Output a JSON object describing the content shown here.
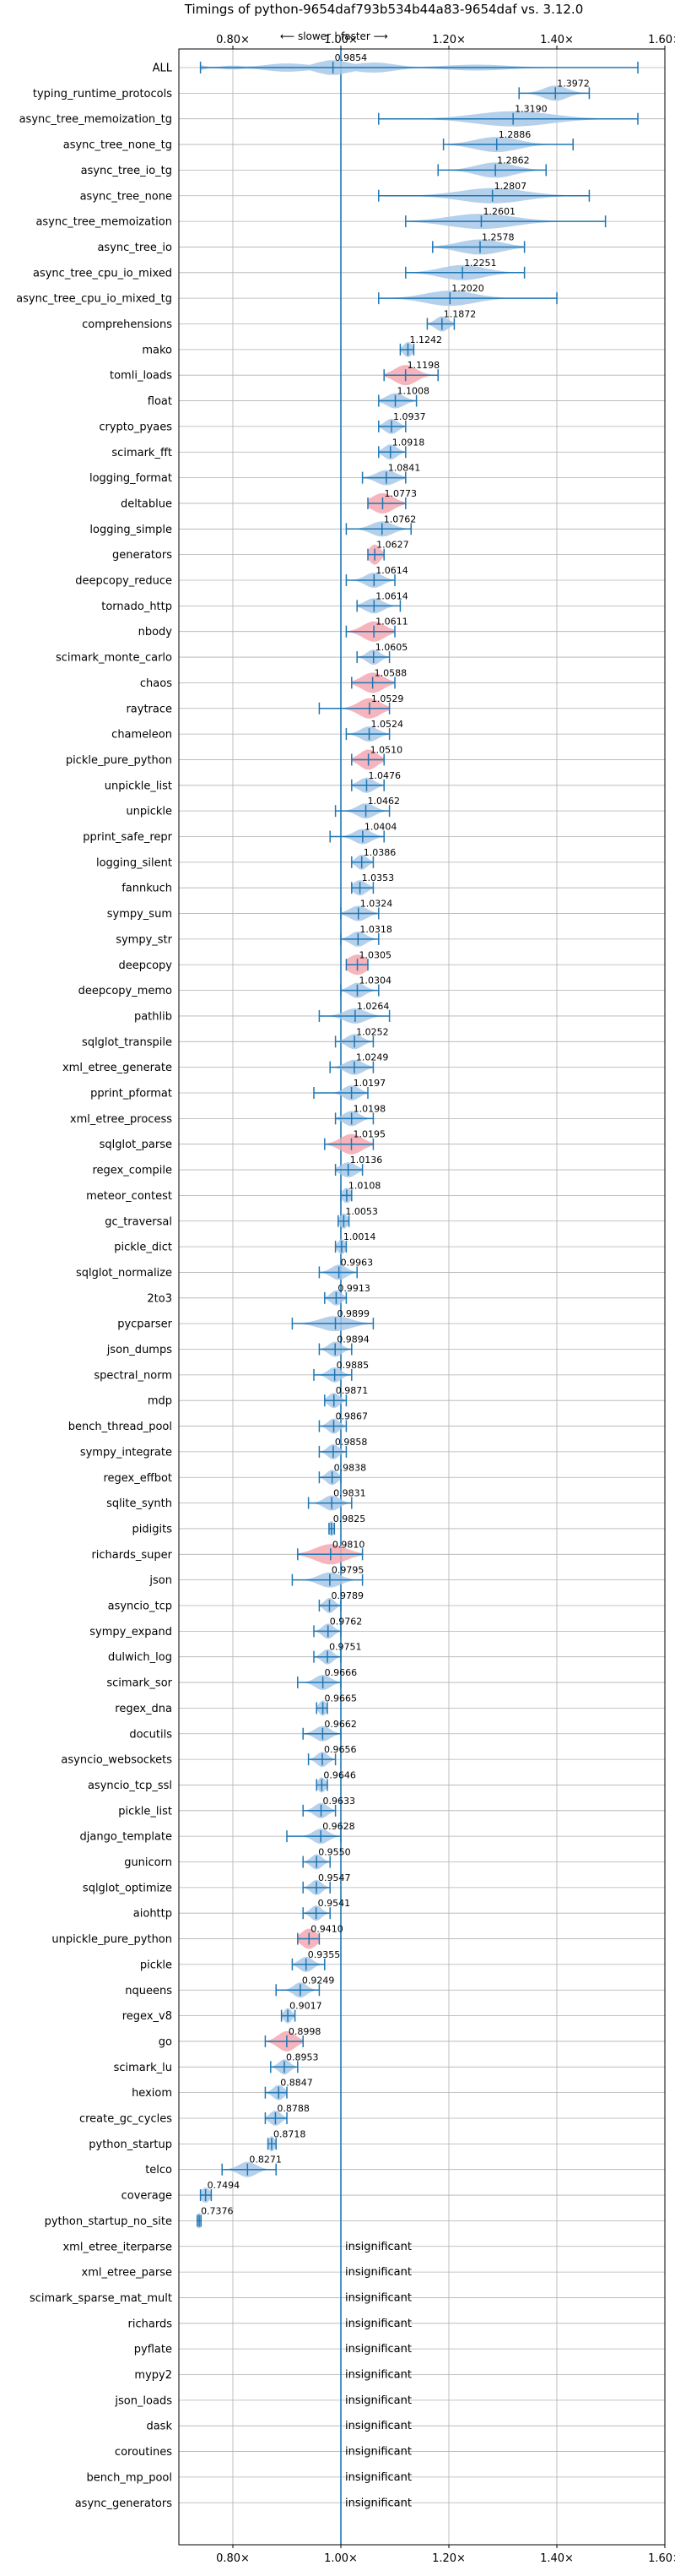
{
  "chart_data": {
    "type": "violin",
    "title": "Timings of python-9654daf793b534b44a83-9654daf vs. 3.12.0",
    "direction_labels": {
      "slower": "⟵ slower",
      "sep": "|",
      "faster": "faster ⟶"
    },
    "xlim": [
      0.7,
      1.6
    ],
    "x_ticks": [
      0.8,
      1.0,
      1.2,
      1.4,
      1.6
    ],
    "x_tick_labels": [
      "0.80×",
      "1.00×",
      "1.20×",
      "1.40×",
      "1.60×"
    ],
    "grid": true,
    "colors": {
      "normal": "#a8c8e8",
      "significant": "#f4a7b0",
      "stroke": "#1f77b4",
      "grid": "#b0b0b0"
    },
    "insignificant_label": "insignificant",
    "benchmarks": [
      {
        "name": "ALL",
        "value": 0.9854,
        "label": "0.9854",
        "min": 0.74,
        "max": 1.55,
        "spread": 0.012,
        "sig": false,
        "shape": "all"
      },
      {
        "name": "typing_runtime_protocols",
        "value": 1.3972,
        "label": "1.3972",
        "min": 1.33,
        "max": 1.46,
        "spread": 0.022,
        "sig": false
      },
      {
        "name": "async_tree_memoization_tg",
        "value": 1.319,
        "label": "1.3190",
        "min": 1.07,
        "max": 1.55,
        "spread": 0.07,
        "sig": false
      },
      {
        "name": "async_tree_none_tg",
        "value": 1.2886,
        "label": "1.2886",
        "min": 1.19,
        "max": 1.43,
        "spread": 0.04,
        "sig": false
      },
      {
        "name": "async_tree_io_tg",
        "value": 1.2862,
        "label": "1.2862",
        "min": 1.18,
        "max": 1.38,
        "spread": 0.035,
        "sig": false
      },
      {
        "name": "async_tree_none",
        "value": 1.2807,
        "label": "1.2807",
        "min": 1.07,
        "max": 1.46,
        "spread": 0.06,
        "sig": false
      },
      {
        "name": "async_tree_memoization",
        "value": 1.2601,
        "label": "1.2601",
        "min": 1.12,
        "max": 1.49,
        "spread": 0.06,
        "sig": false
      },
      {
        "name": "async_tree_io",
        "value": 1.2578,
        "label": "1.2578",
        "min": 1.17,
        "max": 1.34,
        "spread": 0.04,
        "sig": false
      },
      {
        "name": "async_tree_cpu_io_mixed",
        "value": 1.2251,
        "label": "1.2251",
        "min": 1.12,
        "max": 1.34,
        "spread": 0.04,
        "sig": false
      },
      {
        "name": "async_tree_cpu_io_mixed_tg",
        "value": 1.202,
        "label": "1.2020",
        "min": 1.07,
        "max": 1.4,
        "spread": 0.045,
        "sig": false
      },
      {
        "name": "comprehensions",
        "value": 1.1872,
        "label": "1.1872",
        "min": 1.16,
        "max": 1.21,
        "spread": 0.012,
        "sig": false
      },
      {
        "name": "mako",
        "value": 1.1242,
        "label": "1.1242",
        "min": 1.11,
        "max": 1.135,
        "spread": 0.008,
        "sig": false
      },
      {
        "name": "tomli_loads",
        "value": 1.1198,
        "label": "1.1198",
        "min": 1.08,
        "max": 1.18,
        "spread": 0.02,
        "sig": true
      },
      {
        "name": "float",
        "value": 1.1008,
        "label": "1.1008",
        "min": 1.07,
        "max": 1.14,
        "spread": 0.016,
        "sig": false
      },
      {
        "name": "crypto_pyaes",
        "value": 1.0937,
        "label": "1.0937",
        "min": 1.07,
        "max": 1.12,
        "spread": 0.012,
        "sig": false
      },
      {
        "name": "scimark_fft",
        "value": 1.0918,
        "label": "1.0918",
        "min": 1.07,
        "max": 1.12,
        "spread": 0.012,
        "sig": false
      },
      {
        "name": "logging_format",
        "value": 1.0841,
        "label": "1.0841",
        "min": 1.04,
        "max": 1.12,
        "spread": 0.018,
        "sig": false
      },
      {
        "name": "deltablue",
        "value": 1.0773,
        "label": "1.0773",
        "min": 1.05,
        "max": 1.12,
        "spread": 0.02,
        "sig": true
      },
      {
        "name": "logging_simple",
        "value": 1.0762,
        "label": "1.0762",
        "min": 1.01,
        "max": 1.13,
        "spread": 0.02,
        "sig": false
      },
      {
        "name": "generators",
        "value": 1.0627,
        "label": "1.0627",
        "min": 1.05,
        "max": 1.08,
        "spread": 0.01,
        "sig": true
      },
      {
        "name": "deepcopy_reduce",
        "value": 1.0614,
        "label": "1.0614",
        "min": 1.01,
        "max": 1.1,
        "spread": 0.016,
        "sig": false
      },
      {
        "name": "tornado_http",
        "value": 1.0614,
        "label": "1.0614",
        "min": 1.03,
        "max": 1.11,
        "spread": 0.016,
        "sig": false
      },
      {
        "name": "nbody",
        "value": 1.0611,
        "label": "1.0611",
        "min": 1.01,
        "max": 1.1,
        "spread": 0.02,
        "sig": true
      },
      {
        "name": "scimark_monte_carlo",
        "value": 1.0605,
        "label": "1.0605",
        "min": 1.03,
        "max": 1.09,
        "spread": 0.012,
        "sig": false
      },
      {
        "name": "chaos",
        "value": 1.0588,
        "label": "1.0588",
        "min": 1.02,
        "max": 1.1,
        "spread": 0.02,
        "sig": true
      },
      {
        "name": "raytrace",
        "value": 1.0529,
        "label": "1.0529",
        "min": 0.96,
        "max": 1.09,
        "spread": 0.02,
        "sig": true
      },
      {
        "name": "chameleon",
        "value": 1.0524,
        "label": "1.0524",
        "min": 1.01,
        "max": 1.09,
        "spread": 0.016,
        "sig": false
      },
      {
        "name": "pickle_pure_python",
        "value": 1.051,
        "label": "1.0510",
        "min": 1.02,
        "max": 1.08,
        "spread": 0.016,
        "sig": true
      },
      {
        "name": "unpickle_list",
        "value": 1.0476,
        "label": "1.0476",
        "min": 1.02,
        "max": 1.08,
        "spread": 0.014,
        "sig": false
      },
      {
        "name": "unpickle",
        "value": 1.0462,
        "label": "1.0462",
        "min": 0.99,
        "max": 1.09,
        "spread": 0.016,
        "sig": false
      },
      {
        "name": "pprint_safe_repr",
        "value": 1.0404,
        "label": "1.0404",
        "min": 0.98,
        "max": 1.08,
        "spread": 0.016,
        "sig": false
      },
      {
        "name": "logging_silent",
        "value": 1.0386,
        "label": "1.0386",
        "min": 1.02,
        "max": 1.06,
        "spread": 0.01,
        "sig": false
      },
      {
        "name": "fannkuch",
        "value": 1.0353,
        "label": "1.0353",
        "min": 1.02,
        "max": 1.06,
        "spread": 0.012,
        "sig": false
      },
      {
        "name": "sympy_sum",
        "value": 1.0324,
        "label": "1.0324",
        "min": 1.0,
        "max": 1.07,
        "spread": 0.016,
        "sig": false
      },
      {
        "name": "sympy_str",
        "value": 1.0318,
        "label": "1.0318",
        "min": 1.0,
        "max": 1.07,
        "spread": 0.014,
        "sig": false
      },
      {
        "name": "deepcopy",
        "value": 1.0305,
        "label": "1.0305",
        "min": 1.01,
        "max": 1.05,
        "spread": 0.018,
        "sig": true
      },
      {
        "name": "deepcopy_memo",
        "value": 1.0304,
        "label": "1.0304",
        "min": 1.0,
        "max": 1.07,
        "spread": 0.014,
        "sig": false
      },
      {
        "name": "pathlib",
        "value": 1.0264,
        "label": "1.0264",
        "min": 0.96,
        "max": 1.09,
        "spread": 0.02,
        "sig": false
      },
      {
        "name": "sqlglot_transpile",
        "value": 1.0252,
        "label": "1.0252",
        "min": 0.99,
        "max": 1.06,
        "spread": 0.014,
        "sig": false
      },
      {
        "name": "xml_etree_generate",
        "value": 1.0249,
        "label": "1.0249",
        "min": 0.98,
        "max": 1.06,
        "spread": 0.016,
        "sig": false
      },
      {
        "name": "pprint_pformat",
        "value": 1.0197,
        "label": "1.0197",
        "min": 0.95,
        "max": 1.05,
        "spread": 0.014,
        "sig": false
      },
      {
        "name": "xml_etree_process",
        "value": 1.0198,
        "label": "1.0198",
        "min": 0.99,
        "max": 1.06,
        "spread": 0.014,
        "sig": false
      },
      {
        "name": "sqlglot_parse",
        "value": 1.0195,
        "label": "1.0195",
        "min": 0.97,
        "max": 1.06,
        "spread": 0.02,
        "sig": true
      },
      {
        "name": "regex_compile",
        "value": 1.0136,
        "label": "1.0136",
        "min": 0.99,
        "max": 1.04,
        "spread": 0.014,
        "sig": false
      },
      {
        "name": "meteor_contest",
        "value": 1.0108,
        "label": "1.0108",
        "min": 1.0,
        "max": 1.02,
        "spread": 0.008,
        "sig": false
      },
      {
        "name": "gc_traversal",
        "value": 1.0053,
        "label": "1.0053",
        "min": 0.995,
        "max": 1.015,
        "spread": 0.007,
        "sig": false
      },
      {
        "name": "pickle_dict",
        "value": 1.0014,
        "label": "1.0014",
        "min": 0.99,
        "max": 1.01,
        "spread": 0.007,
        "sig": false
      },
      {
        "name": "sqlglot_normalize",
        "value": 0.9963,
        "label": "0.9963",
        "min": 0.96,
        "max": 1.03,
        "spread": 0.014,
        "sig": false
      },
      {
        "name": "2to3",
        "value": 0.9913,
        "label": "0.9913",
        "min": 0.97,
        "max": 1.01,
        "spread": 0.01,
        "sig": false
      },
      {
        "name": "pycparser",
        "value": 0.9899,
        "label": "0.9899",
        "min": 0.91,
        "max": 1.06,
        "spread": 0.028,
        "sig": false
      },
      {
        "name": "json_dumps",
        "value": 0.9894,
        "label": "0.9894",
        "min": 0.96,
        "max": 1.02,
        "spread": 0.012,
        "sig": false
      },
      {
        "name": "spectral_norm",
        "value": 0.9885,
        "label": "0.9885",
        "min": 0.95,
        "max": 1.02,
        "spread": 0.012,
        "sig": false
      },
      {
        "name": "mdp",
        "value": 0.9871,
        "label": "0.9871",
        "min": 0.97,
        "max": 1.01,
        "spread": 0.01,
        "sig": false
      },
      {
        "name": "bench_thread_pool",
        "value": 0.9867,
        "label": "0.9867",
        "min": 0.96,
        "max": 1.01,
        "spread": 0.01,
        "sig": false
      },
      {
        "name": "sympy_integrate",
        "value": 0.9858,
        "label": "0.9858",
        "min": 0.96,
        "max": 1.01,
        "spread": 0.01,
        "sig": false
      },
      {
        "name": "regex_effbot",
        "value": 0.9838,
        "label": "0.9838",
        "min": 0.96,
        "max": 1.0,
        "spread": 0.01,
        "sig": false
      },
      {
        "name": "sqlite_synth",
        "value": 0.9831,
        "label": "0.9831",
        "min": 0.94,
        "max": 1.02,
        "spread": 0.014,
        "sig": false
      },
      {
        "name": "pidigits",
        "value": 0.9825,
        "label": "0.9825",
        "min": 0.978,
        "max": 0.988,
        "spread": 0.005,
        "sig": false
      },
      {
        "name": "richards_super",
        "value": 0.981,
        "label": "0.9810",
        "min": 0.92,
        "max": 1.04,
        "spread": 0.028,
        "sig": true
      },
      {
        "name": "json",
        "value": 0.9795,
        "label": "0.9795",
        "min": 0.91,
        "max": 1.04,
        "spread": 0.02,
        "sig": false
      },
      {
        "name": "asyncio_tcp",
        "value": 0.9789,
        "label": "0.9789",
        "min": 0.96,
        "max": 1.0,
        "spread": 0.009,
        "sig": false
      },
      {
        "name": "sympy_expand",
        "value": 0.9762,
        "label": "0.9762",
        "min": 0.95,
        "max": 1.0,
        "spread": 0.01,
        "sig": false
      },
      {
        "name": "dulwich_log",
        "value": 0.9751,
        "label": "0.9751",
        "min": 0.95,
        "max": 1.0,
        "spread": 0.01,
        "sig": false
      },
      {
        "name": "scimark_sor",
        "value": 0.9666,
        "label": "0.9666",
        "min": 0.92,
        "max": 1.0,
        "spread": 0.014,
        "sig": false
      },
      {
        "name": "regex_dna",
        "value": 0.9665,
        "label": "0.9665",
        "min": 0.955,
        "max": 0.975,
        "spread": 0.007,
        "sig": false
      },
      {
        "name": "docutils",
        "value": 0.9662,
        "label": "0.9662",
        "min": 0.93,
        "max": 1.0,
        "spread": 0.014,
        "sig": false
      },
      {
        "name": "asyncio_websockets",
        "value": 0.9656,
        "label": "0.9656",
        "min": 0.94,
        "max": 0.99,
        "spread": 0.01,
        "sig": false
      },
      {
        "name": "asyncio_tcp_ssl",
        "value": 0.9646,
        "label": "0.9646",
        "min": 0.955,
        "max": 0.975,
        "spread": 0.007,
        "sig": false
      },
      {
        "name": "pickle_list",
        "value": 0.9633,
        "label": "0.9633",
        "min": 0.93,
        "max": 0.99,
        "spread": 0.012,
        "sig": false
      },
      {
        "name": "django_template",
        "value": 0.9628,
        "label": "0.9628",
        "min": 0.9,
        "max": 1.0,
        "spread": 0.014,
        "sig": false
      },
      {
        "name": "gunicorn",
        "value": 0.955,
        "label": "0.9550",
        "min": 0.93,
        "max": 0.98,
        "spread": 0.01,
        "sig": false
      },
      {
        "name": "sqlglot_optimize",
        "value": 0.9547,
        "label": "0.9547",
        "min": 0.93,
        "max": 0.98,
        "spread": 0.01,
        "sig": false
      },
      {
        "name": "aiohttp",
        "value": 0.9541,
        "label": "0.9541",
        "min": 0.93,
        "max": 0.98,
        "spread": 0.01,
        "sig": false
      },
      {
        "name": "unpickle_pure_python",
        "value": 0.941,
        "label": "0.9410",
        "min": 0.92,
        "max": 0.96,
        "spread": 0.014,
        "sig": true
      },
      {
        "name": "pickle",
        "value": 0.9355,
        "label": "0.9355",
        "min": 0.91,
        "max": 0.97,
        "spread": 0.012,
        "sig": false
      },
      {
        "name": "nqueens",
        "value": 0.9249,
        "label": "0.9249",
        "min": 0.88,
        "max": 0.96,
        "spread": 0.012,
        "sig": false
      },
      {
        "name": "regex_v8",
        "value": 0.9017,
        "label": "0.9017",
        "min": 0.89,
        "max": 0.915,
        "spread": 0.007,
        "sig": false
      },
      {
        "name": "go",
        "value": 0.8998,
        "label": "0.8998",
        "min": 0.86,
        "max": 0.93,
        "spread": 0.016,
        "sig": true
      },
      {
        "name": "scimark_lu",
        "value": 0.8953,
        "label": "0.8953",
        "min": 0.87,
        "max": 0.92,
        "spread": 0.01,
        "sig": false
      },
      {
        "name": "hexiom",
        "value": 0.8847,
        "label": "0.8847",
        "min": 0.86,
        "max": 0.9,
        "spread": 0.01,
        "sig": false
      },
      {
        "name": "create_gc_cycles",
        "value": 0.8788,
        "label": "0.8788",
        "min": 0.86,
        "max": 0.9,
        "spread": 0.01,
        "sig": false
      },
      {
        "name": "python_startup",
        "value": 0.8718,
        "label": "0.8718",
        "min": 0.865,
        "max": 0.88,
        "spread": 0.006,
        "sig": false
      },
      {
        "name": "telco",
        "value": 0.8271,
        "label": "0.8271",
        "min": 0.78,
        "max": 0.88,
        "spread": 0.016,
        "sig": false
      },
      {
        "name": "coverage",
        "value": 0.7494,
        "label": "0.7494",
        "min": 0.74,
        "max": 0.76,
        "spread": 0.008,
        "sig": false
      },
      {
        "name": "python_startup_no_site",
        "value": 0.7376,
        "label": "0.7376",
        "min": 0.734,
        "max": 0.741,
        "spread": 0.006,
        "sig": false
      },
      {
        "name": "xml_etree_iterparse",
        "value": null,
        "label": "insignificant",
        "sig": false
      },
      {
        "name": "xml_etree_parse",
        "value": null,
        "label": "insignificant",
        "sig": false
      },
      {
        "name": "scimark_sparse_mat_mult",
        "value": null,
        "label": "insignificant",
        "sig": false
      },
      {
        "name": "richards",
        "value": null,
        "label": "insignificant",
        "sig": false
      },
      {
        "name": "pyflate",
        "value": null,
        "label": "insignificant",
        "sig": false
      },
      {
        "name": "mypy2",
        "value": null,
        "label": "insignificant",
        "sig": false
      },
      {
        "name": "json_loads",
        "value": null,
        "label": "insignificant",
        "sig": false
      },
      {
        "name": "dask",
        "value": null,
        "label": "insignificant",
        "sig": false
      },
      {
        "name": "coroutines",
        "value": null,
        "label": "insignificant",
        "sig": false
      },
      {
        "name": "bench_mp_pool",
        "value": null,
        "label": "insignificant",
        "sig": false
      },
      {
        "name": "async_generators",
        "value": null,
        "label": "insignificant",
        "sig": false
      }
    ]
  }
}
